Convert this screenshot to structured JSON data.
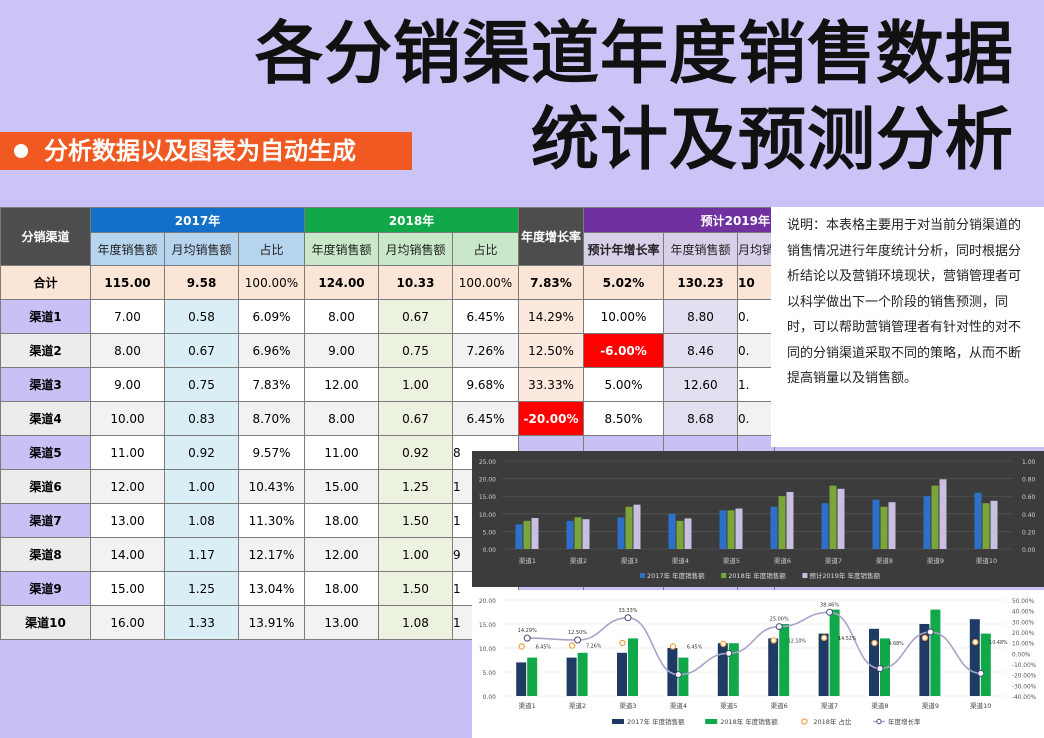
{
  "title_line1": "各分销渠道年度销售数据",
  "title_line2": "统计及预测分析",
  "subtitle": "分析数据以及图表为自动生成",
  "table": {
    "col_channel": "分销渠道",
    "group_2017": "2017年",
    "group_2018": "2018年",
    "col_growth": "年度增长率",
    "group_2019": "预计2019年",
    "sub_annual": "年度销售额",
    "sub_monthly": "月均销售额",
    "sub_share": "占比",
    "sub_pred_growth": "预计年增长率",
    "sub_annual_2019": "年度销售额",
    "sub_monthly_2019": "月均销",
    "total": {
      "name": "合计",
      "a17": "115.00",
      "m17": "9.58",
      "s17": "100.00%",
      "a18": "124.00",
      "m18": "10.33",
      "s18": "100.00%",
      "growth": "7.83%",
      "pg19": "5.02%",
      "a19": "130.23",
      "m19": "10"
    },
    "rows": [
      {
        "name": "渠道1",
        "a17": "7.00",
        "m17": "0.58",
        "s17": "6.09%",
        "a18": "8.00",
        "m18": "0.67",
        "s18": "6.45%",
        "growth": "14.29%",
        "pg19": "10.00%",
        "a19": "8.80",
        "m19": "0."
      },
      {
        "name": "渠道2",
        "a17": "8.00",
        "m17": "0.67",
        "s17": "6.96%",
        "a18": "9.00",
        "m18": "0.75",
        "s18": "7.26%",
        "growth": "12.50%",
        "pg19": "-6.00%",
        "a19": "8.46",
        "m19": "0."
      },
      {
        "name": "渠道3",
        "a17": "9.00",
        "m17": "0.75",
        "s17": "7.83%",
        "a18": "12.00",
        "m18": "1.00",
        "s18": "9.68%",
        "growth": "33.33%",
        "pg19": "5.00%",
        "a19": "12.60",
        "m19": "1."
      },
      {
        "name": "渠道4",
        "a17": "10.00",
        "m17": "0.83",
        "s17": "8.70%",
        "a18": "8.00",
        "m18": "0.67",
        "s18": "6.45%",
        "growth": "-20.00%",
        "pg19": "8.50%",
        "a19": "8.68",
        "m19": "0."
      },
      {
        "name": "渠道5",
        "a17": "11.00",
        "m17": "0.92",
        "s17": "9.57%",
        "a18": "11.00",
        "m18": "0.92",
        "s18": "8",
        "growth": "",
        "pg19": "",
        "a19": "",
        "m19": ""
      },
      {
        "name": "渠道6",
        "a17": "12.00",
        "m17": "1.00",
        "s17": "10.43%",
        "a18": "15.00",
        "m18": "1.25",
        "s18": "1",
        "growth": "",
        "pg19": "",
        "a19": "",
        "m19": ""
      },
      {
        "name": "渠道7",
        "a17": "13.00",
        "m17": "1.08",
        "s17": "11.30%",
        "a18": "18.00",
        "m18": "1.50",
        "s18": "1",
        "growth": "",
        "pg19": "",
        "a19": "",
        "m19": ""
      },
      {
        "name": "渠道8",
        "a17": "14.00",
        "m17": "1.17",
        "s17": "12.17%",
        "a18": "12.00",
        "m18": "1.00",
        "s18": "9",
        "growth": "",
        "pg19": "",
        "a19": "",
        "m19": ""
      },
      {
        "name": "渠道9",
        "a17": "15.00",
        "m17": "1.25",
        "s17": "13.04%",
        "a18": "18.00",
        "m18": "1.50",
        "s18": "1",
        "growth": "",
        "pg19": "",
        "a19": "",
        "m19": ""
      },
      {
        "name": "渠道10",
        "a17": "16.00",
        "m17": "1.33",
        "s17": "13.91%",
        "a18": "13.00",
        "m18": "1.08",
        "s18": "1",
        "growth": "",
        "pg19": "",
        "a19": "",
        "m19": ""
      }
    ]
  },
  "note": "说明：本表格主要用于对当前分销渠道的销售情况进行年度统计分析，同时根据分析结论以及营销环境现状，营销管理者可以科学做出下一个阶段的销售预测，同时，可以帮助营销管理者有针对性的对不同的分销渠道采取不同的策略，从而不断提高销量以及销售额。",
  "colors": {
    "red_cell": "#ff0000",
    "c2017_top": "#2e6fc9",
    "c2018_top": "#7aa63a",
    "c2019_top": "#c9bfe0",
    "c2017_bottom": "#1f3a63",
    "c2018_bottom": "#10a849",
    "share_marker": "#f0a040",
    "growth_line": "#a9a3c8"
  },
  "chart_data": [
    {
      "type": "bar",
      "categories": [
        "渠道1",
        "渠道2",
        "渠道3",
        "渠道4",
        "渠道5",
        "渠道6",
        "渠道7",
        "渠道8",
        "渠道9",
        "渠道10"
      ],
      "series": [
        {
          "name": "2017年 年度销售额",
          "values": [
            7,
            8,
            9,
            10,
            11,
            12,
            13,
            14,
            15,
            16
          ]
        },
        {
          "name": "2018年 年度销售额",
          "values": [
            8,
            9,
            12,
            8,
            11,
            15,
            18,
            12,
            18,
            13
          ]
        },
        {
          "name": "预计2019年 年度销售额",
          "values": [
            8.8,
            8.46,
            12.6,
            8.68,
            11.5,
            16.2,
            17.1,
            13.3,
            19.8,
            13.7
          ]
        }
      ],
      "ylim": [
        0,
        25
      ],
      "yticks": [
        "25.00",
        "20.00",
        "15.00",
        "10.00",
        "5.00",
        "0.00"
      ],
      "y2ticks": [
        "1.00",
        "0.80",
        "0.60",
        "0.40",
        "0.20",
        "0.00"
      ],
      "legend": "bottom"
    },
    {
      "type": "bar",
      "categories": [
        "渠道1",
        "渠道2",
        "渠道3",
        "渠道4",
        "渠道5",
        "渠道6",
        "渠道7",
        "渠道8",
        "渠道9",
        "渠道10"
      ],
      "series": [
        {
          "name": "2017年 年度销售额",
          "values": [
            7,
            8,
            9,
            10,
            11,
            12,
            13,
            14,
            15,
            16
          ]
        },
        {
          "name": "2018年 年度销售额",
          "values": [
            8,
            9,
            12,
            8,
            11,
            15,
            18,
            12,
            18,
            13
          ]
        },
        {
          "name": "2018年 占比",
          "values": [
            6.45,
            7.26,
            9.68,
            6.45,
            8.87,
            12.1,
            14.52,
            9.68,
            14.52,
            10.48
          ]
        },
        {
          "name": "年度增长率",
          "values": [
            14.29,
            12.5,
            33.33,
            -20.0,
            0.0,
            25.0,
            38.46,
            -14.29,
            20.0,
            -18.75
          ]
        }
      ],
      "ylim": [
        0,
        20
      ],
      "y2lim": [
        -40,
        50
      ],
      "yticks": [
        "20.00",
        "15.00",
        "10.00",
        "5.00",
        "0.00"
      ],
      "y2ticks": [
        "50.00%",
        "40.00%",
        "30.00%",
        "20.00%",
        "10.00%",
        "0.00%",
        "-10.00%",
        "-20.00%",
        "-30.00%",
        "-40.00%"
      ],
      "labels_growth": [
        "14.29%",
        "12.50%",
        "33.33%",
        "",
        "",
        "25.00%",
        "38.46%",
        "",
        "",
        ""
      ],
      "labels_share": [
        "6.45%",
        "7.26%",
        "",
        "6.45%",
        "",
        "12.10%",
        "14.52%",
        "9.68%",
        "",
        "10.48%"
      ],
      "legend": "bottom"
    }
  ]
}
